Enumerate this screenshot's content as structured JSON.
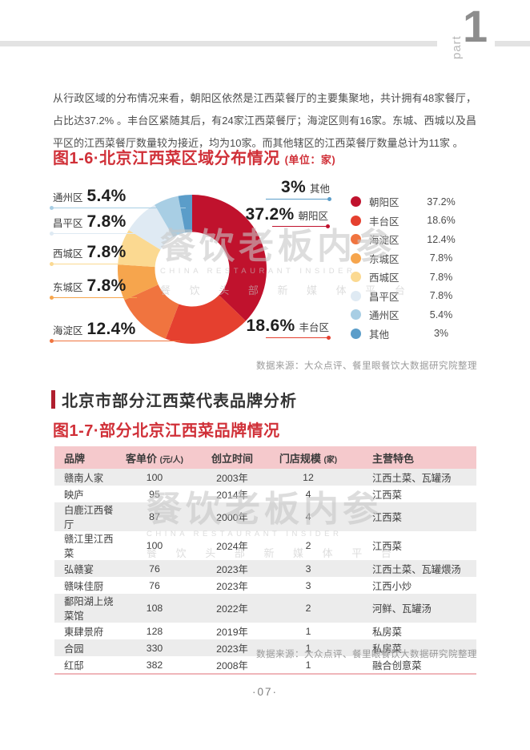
{
  "header": {
    "part_label": "part",
    "part_number": "1"
  },
  "intro_paragraph": "从行政区域的分布情况来看，朝阳区依然是江西菜餐厅的主要集聚地，共计拥有48家餐厅，占比达37.2% 。丰台区紧随其后，有24家江西菜餐厅；海淀区则有16家。东城、西城以及昌平区的江西菜餐厅数量较为接近，均为10家。而其他辖区的江西菜餐厅数量总计为11家 。",
  "figure1": {
    "title": "图1-6·北京江西菜区域分布情况",
    "unit": "(单位：家)",
    "source": "数据来源：大众点评、餐里眼餐饮大数据研究院整理"
  },
  "chart_data": {
    "type": "pie",
    "donut": true,
    "title": "图1-6·北京江西菜区域分布情况（单位：家）",
    "categories": [
      "朝阳区",
      "丰台区",
      "海淀区",
      "东城区",
      "西城区",
      "昌平区",
      "通州区",
      "其他"
    ],
    "values": [
      37.2,
      18.6,
      12.4,
      7.8,
      7.8,
      7.8,
      5.4,
      3
    ],
    "labels": [
      "37.2%",
      "18.6%",
      "12.4%",
      "7.8%",
      "7.8%",
      "7.8%",
      "5.4%",
      "3%"
    ],
    "colors": [
      "#c0122d",
      "#e5402f",
      "#f0743f",
      "#f6a54d",
      "#fbd991",
      "#dfeaf3",
      "#a8cee4",
      "#5b9dc9"
    ],
    "legend_position": "right",
    "start_angle_deg": 0,
    "direction": "clockwise"
  },
  "section2": {
    "heading": "北京市部分江西菜代表品牌分析",
    "figure_title": "图1-7·部分北京江西菜品牌情况",
    "source": "数据来源：大众点评、餐里眼餐饮大数据研究院整理"
  },
  "table": {
    "columns": [
      {
        "label": "品牌",
        "note": ""
      },
      {
        "label": "客单价",
        "note": "(元/人)"
      },
      {
        "label": "创立时间",
        "note": ""
      },
      {
        "label": "门店规模",
        "note": "(家)"
      },
      {
        "label": "主营特色",
        "note": ""
      }
    ],
    "rows": [
      [
        "赣南人家",
        "100",
        "2003年",
        "12",
        "江西土菜、瓦罐汤"
      ],
      [
        "映庐",
        "95",
        "2014年",
        "4",
        "江西菜"
      ],
      [
        "白鹿江西餐厅",
        "87",
        "2000年",
        "4",
        "江西菜"
      ],
      [
        "赣江里江西菜",
        "100",
        "2024年",
        "2",
        "江西菜"
      ],
      [
        "弘赣宴",
        "76",
        "2023年",
        "3",
        "江西土菜、瓦罐煨汤"
      ],
      [
        "赣味佳厨",
        "76",
        "2023年",
        "3",
        "江西小炒"
      ],
      [
        "鄱阳湖上烧菜馆",
        "108",
        "2022年",
        "2",
        "河鲜、瓦罐汤"
      ],
      [
        "東肆景府",
        "128",
        "2019年",
        "1",
        "私房菜"
      ],
      [
        "合园",
        "330",
        "2023年",
        "1",
        "私房菜"
      ],
      [
        "红邸",
        "382",
        "2008年",
        "1",
        "融合创意菜"
      ]
    ]
  },
  "watermark": {
    "line1": "餐饮老板内参",
    "line2": "CHINA RESTAURANT INSIDER",
    "line3": "餐 饮 头 部 新 媒 体 平 台"
  },
  "footer": {
    "page_number": "·07·"
  },
  "colors": {
    "accent_red": "#d03038",
    "heading_bar_red": "#b01f2e",
    "table_header_bg": "#f5c9cc",
    "table_row_alt": "#ececec",
    "table_bottom_line": "#efb6ba",
    "top_rule_gray": "#e3e3e3"
  }
}
